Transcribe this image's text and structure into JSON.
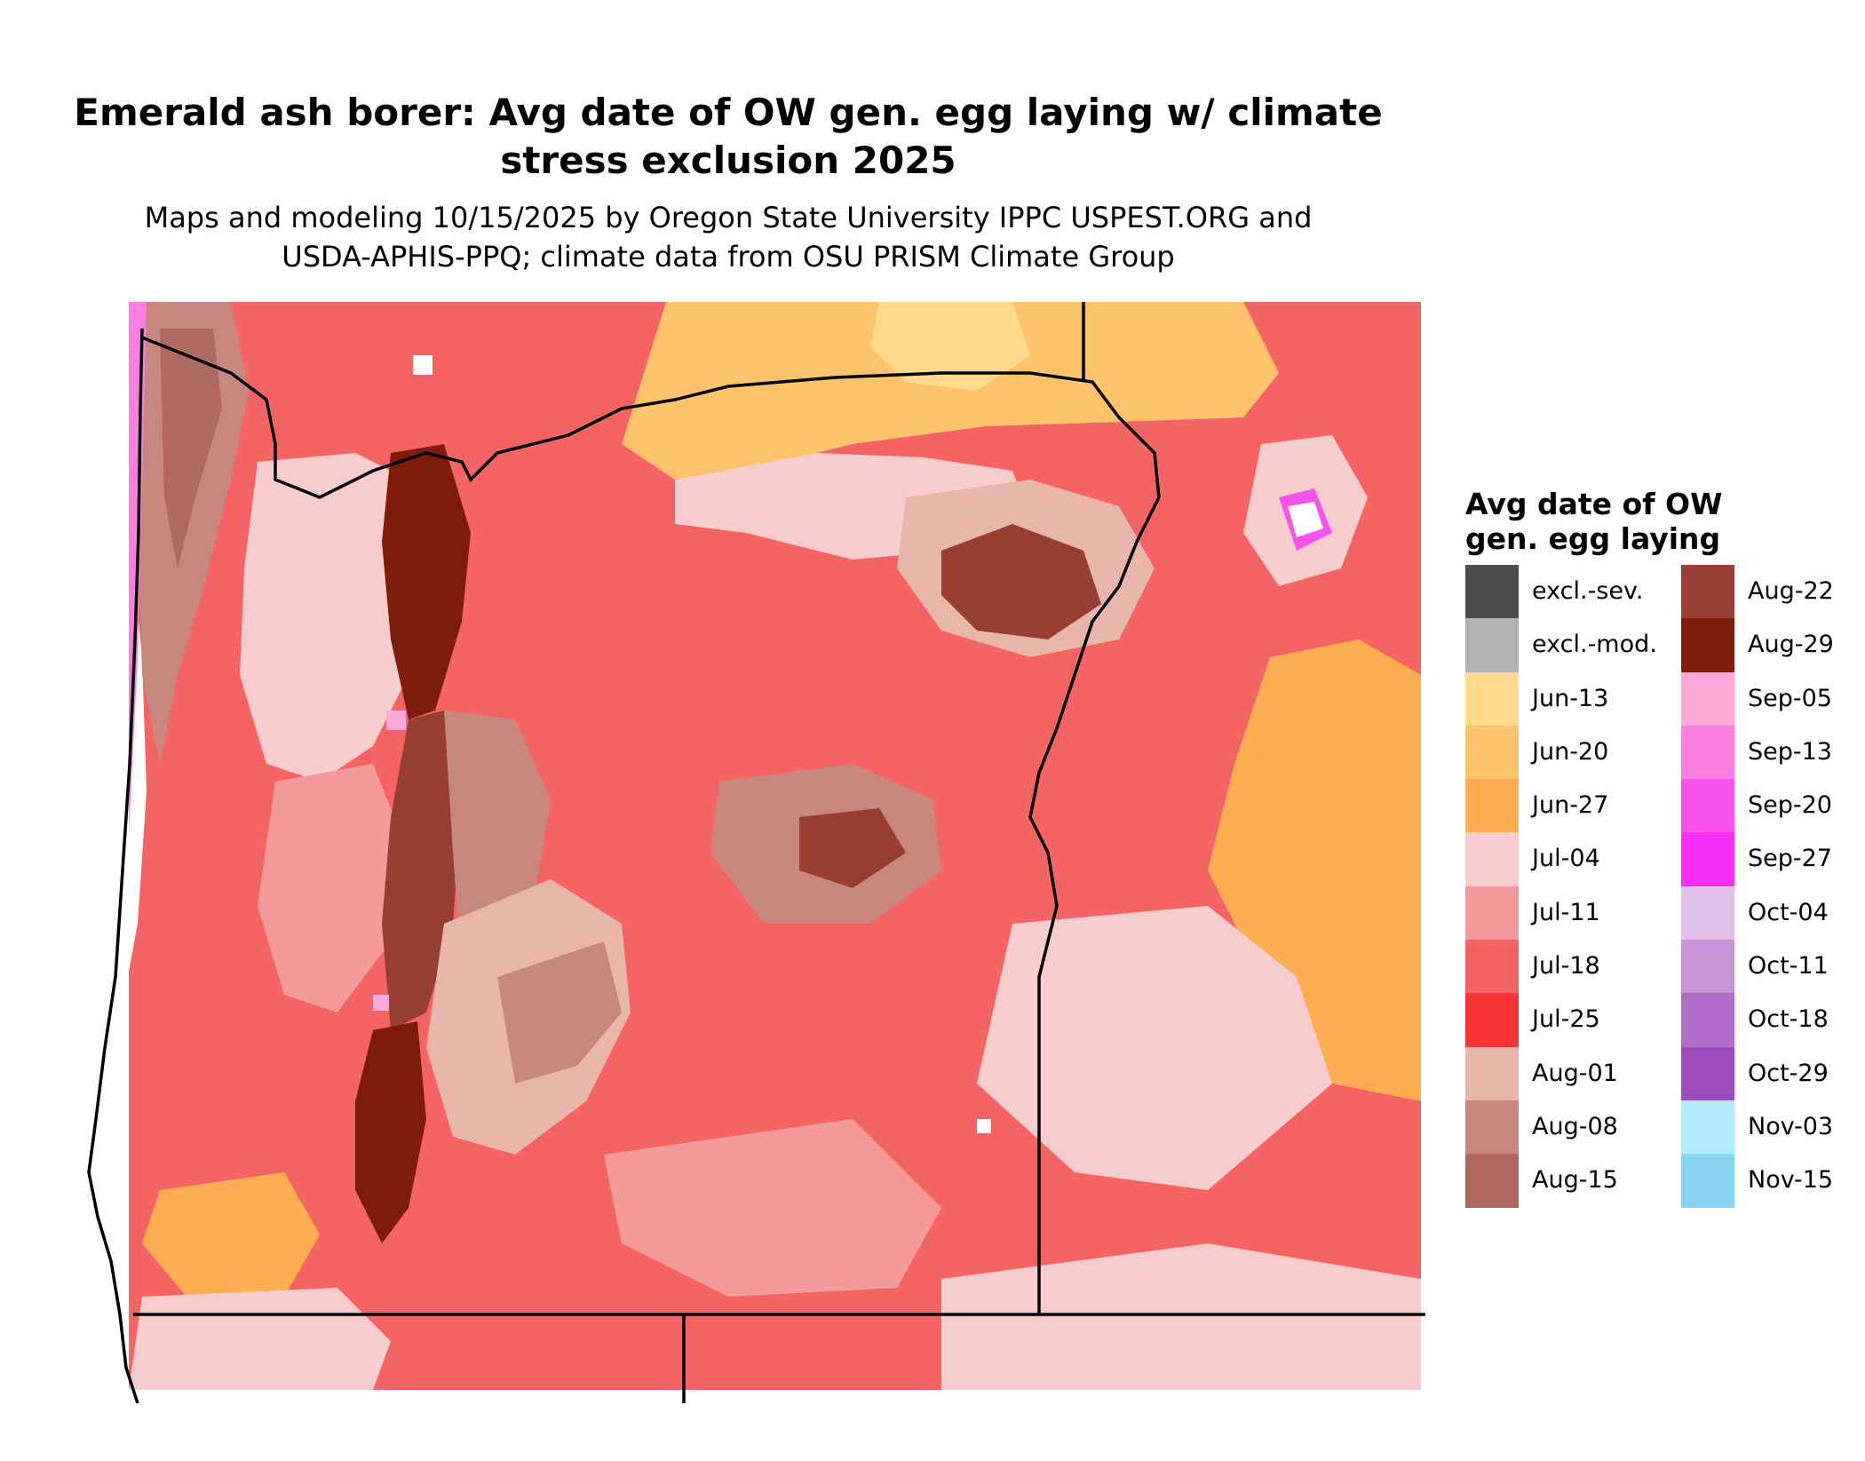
{
  "title_lines": [
    "Emerald ash borer: Avg date of OW gen. egg laying w/ climate",
    "stress exclusion 2025"
  ],
  "subtitle_lines": [
    "Maps and modeling 10/15/2025 by Oregon State University IPPC USPEST.ORG and",
    "USDA-APHIS-PPQ; climate data from OSU PRISM Climate Group"
  ],
  "legend": {
    "title_lines": [
      "Avg date of OW",
      "gen. egg laying"
    ],
    "items": [
      {
        "label": "excl.-sev.",
        "color": "#4d4d4d"
      },
      {
        "label": "excl.-mod.",
        "color": "#b3b3b3"
      },
      {
        "label": "Jun-13",
        "color": "#fed98e"
      },
      {
        "label": "Jun-20",
        "color": "#fdc36a"
      },
      {
        "label": "Jun-27",
        "color": "#fdae53"
      },
      {
        "label": "Jul-04",
        "color": "#f6cccc"
      },
      {
        "label": "Jul-11",
        "color": "#f59a9a"
      },
      {
        "label": "Jul-18",
        "color": "#f46464"
      },
      {
        "label": "Jul-25",
        "color": "#f83434"
      },
      {
        "label": "Aug-01",
        "color": "#e8b5ab"
      },
      {
        "label": "Aug-08",
        "color": "#c8877e"
      },
      {
        "label": "Aug-15",
        "color": "#b06a60"
      },
      {
        "label": "Aug-22",
        "color": "#973f32"
      },
      {
        "label": "Aug-29",
        "color": "#7f1d0c"
      },
      {
        "label": "Sep-05",
        "color": "#fcaadb"
      },
      {
        "label": "Sep-13",
        "color": "#fa7fe0"
      },
      {
        "label": "Sep-20",
        "color": "#f852ea"
      },
      {
        "label": "Sep-27",
        "color": "#f82df6"
      },
      {
        "label": "Oct-04",
        "color": "#e0bfe8"
      },
      {
        "label": "Oct-11",
        "color": "#c896d6"
      },
      {
        "label": "Oct-18",
        "color": "#b26ec9"
      },
      {
        "label": "Oct-29",
        "color": "#9f4bbd"
      },
      {
        "label": "Nov-03",
        "color": "#b4ebfc"
      },
      {
        "label": "Nov-15",
        "color": "#87d4f3"
      }
    ]
  },
  "map": {
    "region": "Oregon",
    "background_color": "#f46464",
    "boundary_color": "#000000"
  }
}
